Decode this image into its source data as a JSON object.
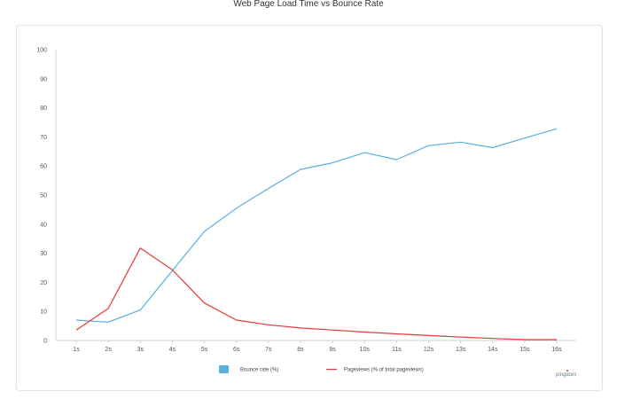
{
  "chart_data": {
    "type": "line",
    "title": "Web Page Load Time vs Bounce Rate",
    "xlabel": "",
    "ylabel": "",
    "categories": [
      "1s",
      "2s",
      "3s",
      "4s",
      "5s",
      "6s",
      "7s",
      "8s",
      "9s",
      "10s",
      "11s",
      "12s",
      "13s",
      "14s",
      "15s",
      "16s"
    ],
    "ylim": [
      0,
      100
    ],
    "yticks": [
      0,
      10,
      20,
      30,
      40,
      50,
      60,
      70,
      80,
      90,
      100
    ],
    "grid": false,
    "legend_position": "bottom",
    "series": [
      {
        "name": "Bounce rate  (%)",
        "color": "#5aaee0",
        "legend_marker": "square",
        "values": [
          7,
          6.3,
          10.5,
          24,
          37.5,
          45.5,
          52.3,
          58.8,
          61.1,
          64.6,
          62.2,
          67,
          68.2,
          66.3,
          69.6,
          72.8
        ]
      },
      {
        "name": "Pageviews (% of total pageviews)",
        "color": "#e8383d",
        "legend_marker": "line",
        "values": [
          3.6,
          11,
          31.8,
          24.3,
          12.9,
          7,
          5.4,
          4.3,
          3.6,
          2.9,
          2.3,
          1.7,
          1.2,
          0.7,
          0.3,
          0.3
        ]
      }
    ]
  },
  "branding": {
    "logo_text": "pingdom",
    "logo_icon": "pingdom-logo"
  }
}
